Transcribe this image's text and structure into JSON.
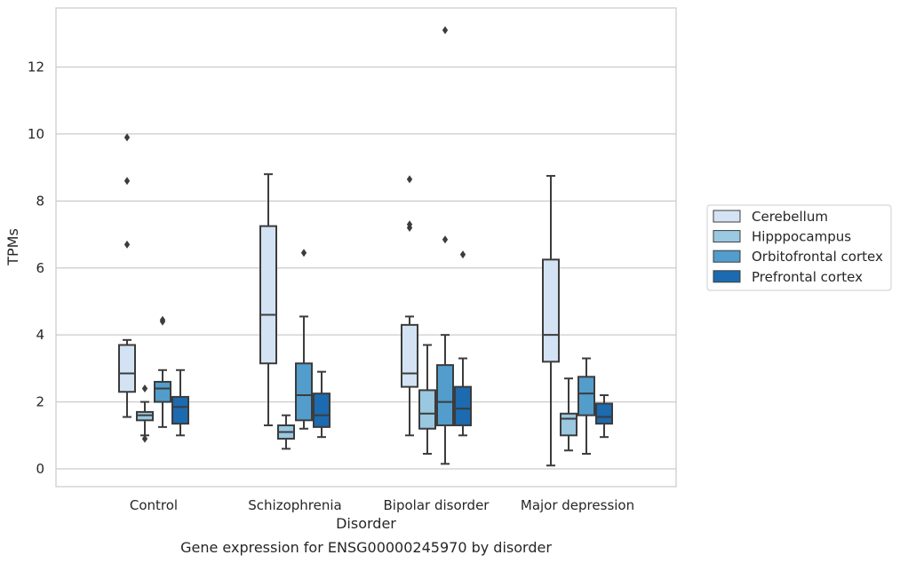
{
  "chart_data": {
    "type": "box",
    "title": "",
    "caption": "Gene expression for ENSG00000245970 by disorder",
    "xlabel": "Disorder",
    "ylabel": "TPMs",
    "ylim": [
      -0.5,
      13.8
    ],
    "yticks": [
      0,
      2,
      4,
      6,
      8,
      10,
      12
    ],
    "grid": "horizontal",
    "legend_position": "right",
    "categories": [
      "Control",
      "Schizophrenia",
      "Bipolar disorder",
      "Major depression"
    ],
    "series": [
      {
        "name": "Cerebellum",
        "color": "#d3e3f3",
        "boxes": [
          {
            "whisker_low": 1.55,
            "q1": 2.3,
            "median": 2.85,
            "q3": 3.7,
            "whisker_high": 3.85,
            "outliers": [
              6.7,
              8.6,
              9.9
            ]
          },
          {
            "whisker_low": 1.3,
            "q1": 3.15,
            "median": 4.6,
            "q3": 7.25,
            "whisker_high": 8.8,
            "outliers": []
          },
          {
            "whisker_low": 1.0,
            "q1": 2.45,
            "median": 2.85,
            "q3": 4.3,
            "whisker_high": 4.55,
            "outliers": [
              7.2,
              7.3,
              8.65
            ]
          },
          {
            "whisker_low": 0.1,
            "q1": 3.2,
            "median": 4.0,
            "q3": 6.25,
            "whisker_high": 8.75,
            "outliers": []
          }
        ]
      },
      {
        "name": "Hipppocampus",
        "color": "#9ac8e0",
        "boxes": [
          {
            "whisker_low": 1.0,
            "q1": 1.45,
            "median": 1.6,
            "q3": 1.7,
            "whisker_high": 2.0,
            "outliers": [
              0.9,
              2.4
            ]
          },
          {
            "whisker_low": 0.6,
            "q1": 0.9,
            "median": 1.1,
            "q3": 1.3,
            "whisker_high": 1.6,
            "outliers": []
          },
          {
            "whisker_low": 0.45,
            "q1": 1.2,
            "median": 1.65,
            "q3": 2.35,
            "whisker_high": 3.7,
            "outliers": []
          },
          {
            "whisker_low": 0.55,
            "q1": 1.0,
            "median": 1.5,
            "q3": 1.65,
            "whisker_high": 2.7,
            "outliers": []
          }
        ]
      },
      {
        "name": "Orbitofrontal cortex",
        "color": "#529dcc",
        "boxes": [
          {
            "whisker_low": 1.25,
            "q1": 2.0,
            "median": 2.4,
            "q3": 2.6,
            "whisker_high": 2.95,
            "outliers": [
              4.4,
              4.45
            ]
          },
          {
            "whisker_low": 1.2,
            "q1": 1.45,
            "median": 2.2,
            "q3": 3.15,
            "whisker_high": 4.55,
            "outliers": [
              6.45
            ]
          },
          {
            "whisker_low": 0.15,
            "q1": 1.3,
            "median": 2.0,
            "q3": 3.1,
            "whisker_high": 4.0,
            "outliers": [
              6.85,
              13.1
            ]
          },
          {
            "whisker_low": 0.45,
            "q1": 1.6,
            "median": 2.25,
            "q3": 2.75,
            "whisker_high": 3.3,
            "outliers": []
          }
        ]
      },
      {
        "name": "Prefrontal cortex",
        "color": "#1c6aaf",
        "boxes": [
          {
            "whisker_low": 1.0,
            "q1": 1.35,
            "median": 1.85,
            "q3": 2.15,
            "whisker_high": 2.95,
            "outliers": []
          },
          {
            "whisker_low": 0.95,
            "q1": 1.25,
            "median": 1.6,
            "q3": 2.25,
            "whisker_high": 2.9,
            "outliers": []
          },
          {
            "whisker_low": 1.0,
            "q1": 1.3,
            "median": 1.8,
            "q3": 2.45,
            "whisker_high": 3.3,
            "outliers": [
              6.4
            ]
          },
          {
            "whisker_low": 0.95,
            "q1": 1.35,
            "median": 1.55,
            "q3": 1.95,
            "whisker_high": 2.2,
            "outliers": []
          }
        ]
      }
    ]
  }
}
